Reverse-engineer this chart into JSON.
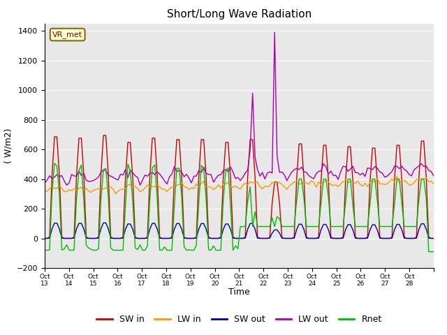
{
  "title": "Short/Long Wave Radiation",
  "ylabel": "( W/m2)",
  "xlabel": "Time",
  "ylim": [
    -200,
    1450
  ],
  "yticks": [
    -200,
    0,
    200,
    400,
    600,
    800,
    1000,
    1200,
    1400
  ],
  "background_color": "#e8e8e8",
  "annotation": "VR_met",
  "x_labels": [
    "Oct\n13",
    "Oct\n14",
    "Oct\n15",
    "Oct\n16",
    "Oct\n17",
    "Oct\n18",
    "Oct\n19",
    "Oct\n20",
    "Oct\n21",
    "Oct\n22",
    "Oct\n23",
    "Oct\n24",
    "Oct\n25",
    "Oct\n26",
    "Oct\n27",
    "Oct\n28"
  ],
  "colors": {
    "SW_in": "#cc0000",
    "LW_in": "#ff9900",
    "SW_out": "#0000aa",
    "LW_out": "#aa00aa",
    "Rnet": "#00bb00"
  },
  "legend_labels": [
    "SW in",
    "LW in",
    "SW out",
    "LW out",
    "Rnet"
  ],
  "n_points": 160,
  "n_days": 16
}
